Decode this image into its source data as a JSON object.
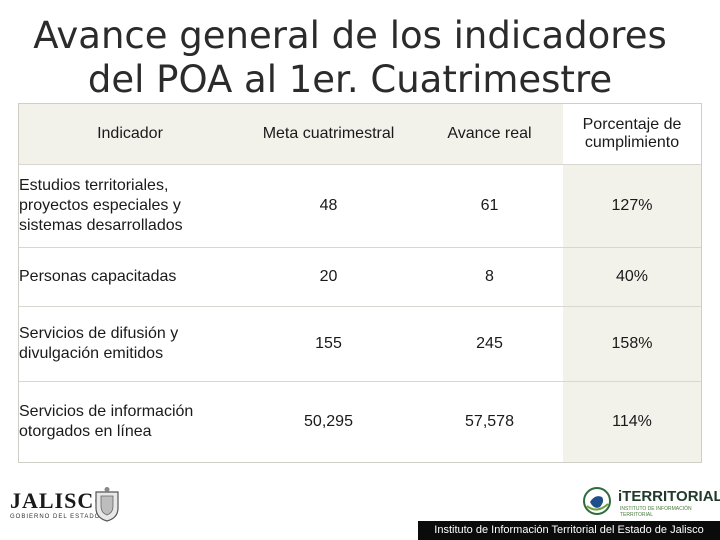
{
  "title": "Avance general de los indicadores del POA al 1er. Cuatrimestre",
  "table": {
    "headers": [
      "Indicador",
      "Meta cuatrimestral",
      "Avance real",
      "Porcentaje de cumplimiento"
    ],
    "rows": [
      [
        "Estudios territoriales, proyectos especiales y sistemas desarrollados",
        "48",
        "61",
        "127%"
      ],
      [
        "Personas capacitadas",
        "20",
        "8",
        "40%"
      ],
      [
        "Servicios de difusión y divulgación emitidos",
        "155",
        "245",
        "158%"
      ],
      [
        "Servicios de información otorgados en línea",
        "50,295",
        "57,578",
        "114%"
      ]
    ]
  },
  "logos": {
    "left": {
      "text": "JALISCO",
      "subtext": "GOBIERNO DEL ESTADO",
      "icon": "state-seal-icon"
    },
    "right": {
      "text": "iTERRITORIAL",
      "subtext": "INSTITUTO DE INFORMACIÓN TERRITORIAL",
      "icon": "territorial-emblem-icon"
    }
  },
  "footer": "Instituto de Información Territorial del Estado de Jalisco",
  "colors": {
    "header_bg": "#f2f1ea",
    "highlight_col_bg": "#f2f1ea",
    "footer_bg": "#0b0b0b",
    "footer_text": "#ffffff"
  }
}
